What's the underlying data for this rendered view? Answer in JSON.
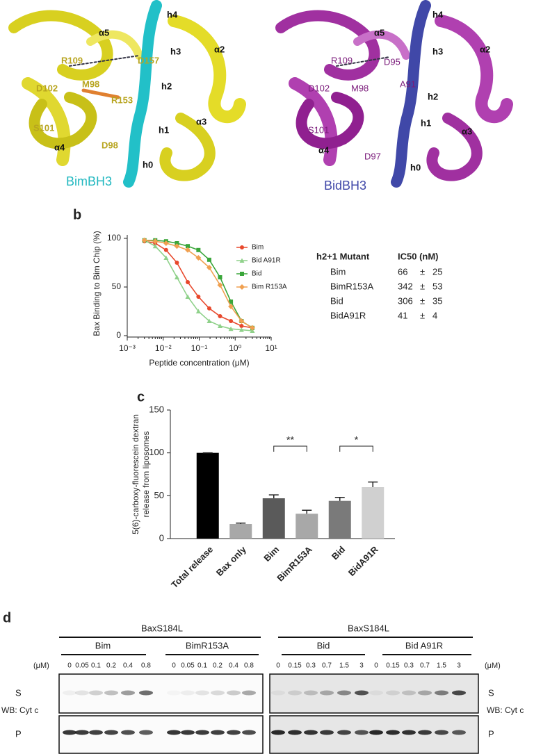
{
  "panel_labels": [
    "a",
    "b",
    "c",
    "d"
  ],
  "panel_a": {
    "left": {
      "labels": [
        "h4",
        "α5",
        "h3",
        "α2",
        "R109",
        "D157",
        "M98",
        "h2",
        "D102",
        "R153",
        "S101",
        "h1",
        "α3",
        "α4",
        "D98",
        "h0"
      ],
      "peptide": "BimBH3"
    },
    "right": {
      "labels": [
        "h4",
        "α5",
        "h3",
        "α2",
        "R109",
        "D95",
        "D102",
        "M98",
        "A91",
        "h2",
        "S101",
        "h1",
        "α3",
        "α4",
        "D97",
        "h0"
      ],
      "peptide": "BidBH3"
    }
  },
  "chart_data": [
    {
      "type": "line",
      "xlabel": "Peptide concentration (μM)",
      "ylabel": "Bax Binding to Bim Chip (%)",
      "log_x": true,
      "xlim": [
        0.001,
        10
      ],
      "xticks": [
        {
          "value": 0.001,
          "label": "10⁻³"
        },
        {
          "value": 0.01,
          "label": "10⁻²"
        },
        {
          "value": 0.1,
          "label": "10⁻¹"
        },
        {
          "value": 1,
          "label": "10⁰"
        },
        {
          "value": 10,
          "label": "10¹"
        }
      ],
      "ylim": [
        0,
        100
      ],
      "yticks": [
        0,
        50,
        100
      ],
      "legend": "upper right",
      "x": [
        0.003,
        0.006,
        0.012,
        0.024,
        0.048,
        0.095,
        0.19,
        0.38,
        0.76,
        1.5,
        3
      ],
      "series": [
        {
          "name": "Bim",
          "color": "#e8482c",
          "marker": "circle",
          "values": [
            97,
            95,
            88,
            75,
            55,
            40,
            28,
            20,
            15,
            10,
            8
          ]
        },
        {
          "name": "Bid A91R",
          "color": "#8fd18a",
          "marker": "triangle",
          "values": [
            98,
            92,
            80,
            60,
            40,
            25,
            15,
            10,
            7,
            6,
            5
          ]
        },
        {
          "name": "Bid",
          "color": "#3aa63a",
          "marker": "square",
          "values": [
            98,
            98,
            97,
            95,
            92,
            88,
            78,
            60,
            35,
            15,
            8
          ]
        },
        {
          "name": "Bim R153A",
          "color": "#f0a050",
          "marker": "diamond",
          "values": [
            98,
            97,
            95,
            92,
            88,
            80,
            70,
            52,
            30,
            15,
            8
          ]
        }
      ]
    },
    {
      "type": "bar",
      "ylabel": [
        "5(6)-carboxy-fluorescein dextran",
        "release from liposomes"
      ],
      "categories": [
        "Total release",
        "Bax only",
        "Bim",
        "BimR153A",
        "Bid",
        "BidA91R"
      ],
      "values": [
        100,
        17,
        47,
        29,
        44,
        60
      ],
      "errors": [
        0,
        1,
        4,
        4,
        4,
        6
      ],
      "colors": [
        "#000000",
        "#a8a8a8",
        "#5a5a5a",
        "#a8a8a8",
        "#7a7a7a",
        "#d0d0d0"
      ],
      "ylim": [
        0,
        150
      ],
      "yticks": [
        0,
        50,
        100,
        150
      ],
      "annotations": [
        "**",
        "*"
      ]
    }
  ],
  "ic50_table": {
    "header": [
      "h2+1 Mutant",
      "IC50 (nM)"
    ],
    "rows": [
      [
        "Bim",
        "66",
        "±",
        "25"
      ],
      [
        "BimR153A",
        "342",
        "±",
        "53"
      ],
      [
        "Bid",
        "306",
        "±",
        "35"
      ],
      [
        "BidA91R",
        "41",
        "±",
        "4"
      ]
    ]
  },
  "panel_d": {
    "constructs": [
      "BaxS184L",
      "BaxS184L"
    ],
    "peptides": [
      "Bim",
      "BimR153A",
      "Bid",
      "Bid A91R"
    ],
    "unit": "(μM)",
    "concentrations_left": [
      "0",
      "0.05",
      "0.1",
      "0.2",
      "0.4",
      "0.8",
      "0",
      "0.05",
      "0.1",
      "0.2",
      "0.4",
      "0.8"
    ],
    "concentrations_right": [
      "0",
      "0.15",
      "0.3",
      "0.7",
      "1.5",
      "3",
      "0",
      "0.15",
      "0.3",
      "0.7",
      "1.5",
      "3"
    ],
    "fractions": [
      "S",
      "P"
    ],
    "western": "WB: Cyt c"
  }
}
